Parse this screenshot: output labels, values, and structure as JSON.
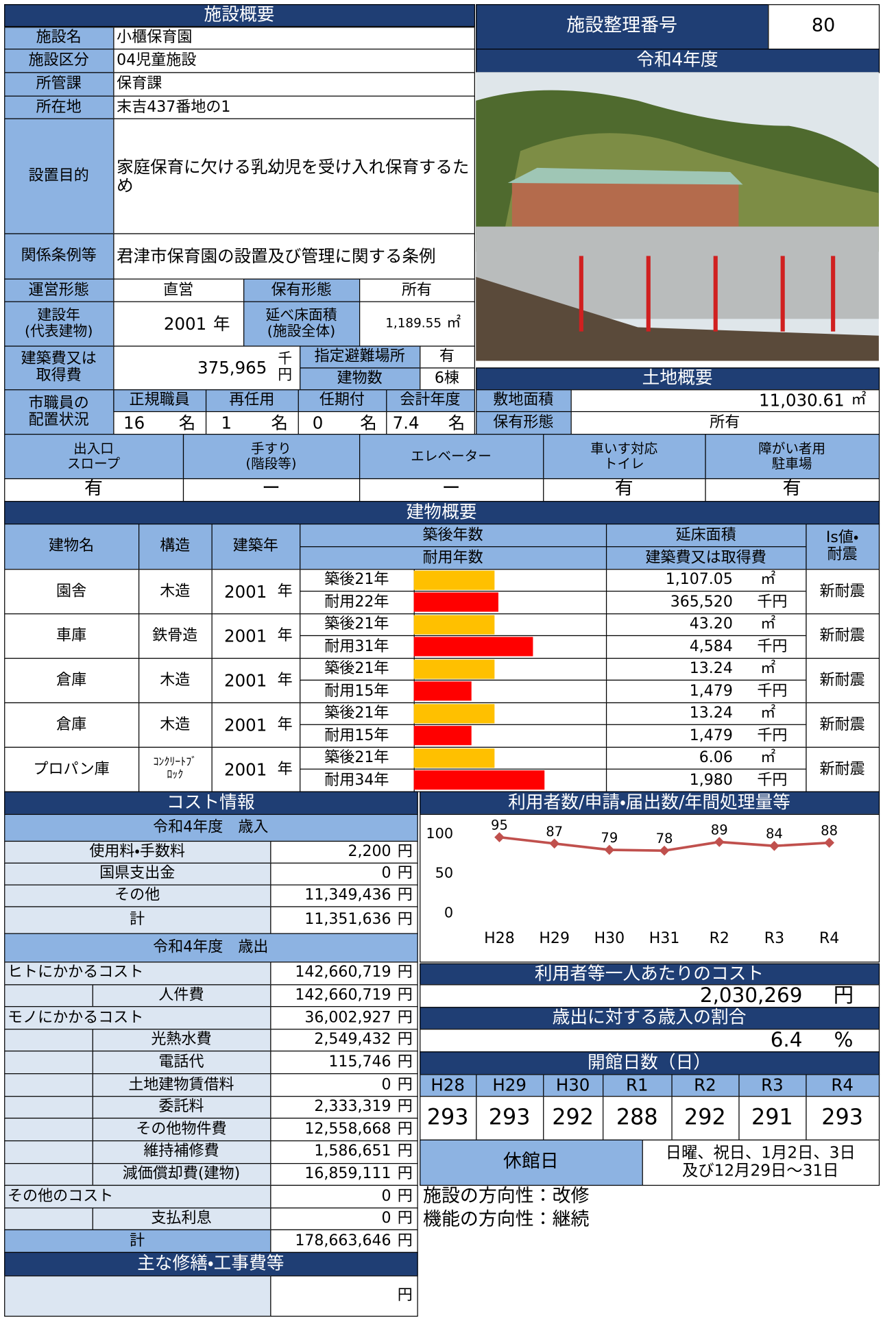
{
  "overview": {
    "title": "施設概要",
    "fields": [
      {
        "label": "施設名",
        "value": "小櫃保育園"
      },
      {
        "label": "施設区分",
        "value": "04児童施設"
      },
      {
        "label": "所管課",
        "value": "保育課"
      },
      {
        "label": "所在地",
        "value": "末吉437番地の1"
      },
      {
        "label": "設置目的",
        "value": "家庭保育に欠ける乳幼児を受け入れ保育するため"
      },
      {
        "label": "関係条例等",
        "value": "君津市保育園の設置及び管理に関する条例"
      }
    ],
    "management": {
      "label": "運営形態",
      "value": "直営"
    },
    "ownership": {
      "label": "保有形態",
      "value": "所有"
    },
    "built_year": {
      "label": "建設年\n(代表建物)",
      "value": "2001",
      "unit": "年"
    },
    "floor_area": {
      "label": "延べ床面積\n(施設全体)",
      "value": "1,189.55",
      "unit": "㎡"
    },
    "cost": {
      "label": "建築費又は\n取得費",
      "value": "375,965",
      "unit": "千\n円"
    },
    "shelter": {
      "label": "指定避難場所",
      "value": "有"
    },
    "building_count": {
      "label": "建物数",
      "value": "6棟"
    },
    "staff": {
      "label": "市職員の\n配置状況",
      "items": [
        {
          "label": "正規職員",
          "count": "16",
          "unit": "名"
        },
        {
          "label": "再任用",
          "count": "1",
          "unit": "名"
        },
        {
          "label": "任期付",
          "count": "0",
          "unit": "名"
        },
        {
          "label": "会計年度",
          "count": "7.4",
          "unit": "名"
        }
      ]
    }
  },
  "facility_number": {
    "label": "施設整理番号",
    "value": "80"
  },
  "fiscal_year": "令和4年度",
  "land": {
    "title": "土地概要",
    "area": {
      "label": "敷地面積",
      "value": "11,030.61",
      "unit": "㎡"
    },
    "ownership": {
      "label": "保有形態",
      "value": "所有"
    }
  },
  "accessibility": [
    {
      "label": "出入口\nスロープ",
      "value": "有"
    },
    {
      "label": "手すり\n(階段等)",
      "value": "ー"
    },
    {
      "label": "エレベーター",
      "value": "ー"
    },
    {
      "label": "車いす対応\nトイレ",
      "value": "有"
    },
    {
      "label": "障がい者用\n駐車場",
      "value": "有"
    }
  ],
  "buildings": {
    "title": "建物概要",
    "headers": {
      "name": "建物名",
      "structure": "構造",
      "year": "建築年",
      "age": "築後年数",
      "life": "耐用年数",
      "area": "延床面積",
      "cost": "建築費又は取得費",
      "seismic": "Is値・\n耐震"
    },
    "bar_xlim": [
      0,
      50
    ],
    "rows": [
      {
        "name": "園舎",
        "structure": "木造",
        "year": "2001",
        "year_unit": "年",
        "age": 21,
        "age_label": "築後21年",
        "life": 22,
        "life_label": "耐用22年",
        "area": "1,107.05",
        "area_unit": "㎡",
        "cost": "365,520",
        "cost_unit": "千円",
        "seismic": "新耐震"
      },
      {
        "name": "車庫",
        "structure": "鉄骨造",
        "year": "2001",
        "year_unit": "年",
        "age": 21,
        "age_label": "築後21年",
        "life": 31,
        "life_label": "耐用31年",
        "area": "43.20",
        "area_unit": "㎡",
        "cost": "4,584",
        "cost_unit": "千円",
        "seismic": "新耐震"
      },
      {
        "name": "倉庫",
        "structure": "木造",
        "year": "2001",
        "year_unit": "年",
        "age": 21,
        "age_label": "築後21年",
        "life": 15,
        "life_label": "耐用15年",
        "area": "13.24",
        "area_unit": "㎡",
        "cost": "1,479",
        "cost_unit": "千円",
        "seismic": "新耐震"
      },
      {
        "name": "倉庫",
        "structure": "木造",
        "year": "2001",
        "year_unit": "年",
        "age": 21,
        "age_label": "築後21年",
        "life": 15,
        "life_label": "耐用15年",
        "area": "13.24",
        "area_unit": "㎡",
        "cost": "1,479",
        "cost_unit": "千円",
        "seismic": "新耐震"
      },
      {
        "name": "プロパン庫",
        "structure": "ｺﾝｸﾘｰﾄﾌﾞ\nﾛｯｸ",
        "year": "2001",
        "year_unit": "年",
        "age": 21,
        "age_label": "築後21年",
        "life": 34,
        "life_label": "耐用34年",
        "area": "6.06",
        "area_unit": "㎡",
        "cost": "1,980",
        "cost_unit": "千円",
        "seismic": "新耐震"
      }
    ]
  },
  "cost_info": {
    "title": "コスト情報",
    "revenue": {
      "header": "令和4年度　歳入",
      "rows": [
        {
          "label": "使用料・手数料",
          "amount": "2,200",
          "unit": "円"
        },
        {
          "label": "国県支出金",
          "amount": "0",
          "unit": "円"
        },
        {
          "label": "その他",
          "amount": "11,349,436",
          "unit": "円"
        },
        {
          "label": "計",
          "amount": "11,351,636",
          "unit": "円"
        }
      ]
    },
    "expenditure": {
      "header": "令和4年度　歳出",
      "rows": [
        {
          "label": "ヒトにかかるコスト",
          "amount": "142,660,719",
          "unit": "円"
        },
        {
          "label": "人件費",
          "amount": "142,660,719",
          "unit": "円"
        },
        {
          "label": "モノにかかるコスト",
          "amount": "36,002,927",
          "unit": "円"
        },
        {
          "label": "光熱水費",
          "amount": "2,549,432",
          "unit": "円"
        },
        {
          "label": "電話代",
          "amount": "115,746",
          "unit": "円"
        },
        {
          "label": "土地建物賃借料",
          "amount": "0",
          "unit": "円"
        },
        {
          "label": "委託料",
          "amount": "2,333,319",
          "unit": "円"
        },
        {
          "label": "その他物件費",
          "amount": "12,558,668",
          "unit": "円"
        },
        {
          "label": "維持補修費",
          "amount": "1,586,651",
          "unit": "円"
        },
        {
          "label": "減価償却費(建物)",
          "amount": "16,859,111",
          "unit": "円"
        },
        {
          "label": "その他のコスト",
          "amount": "0",
          "unit": "円"
        },
        {
          "label": "支払利息",
          "amount": "0",
          "unit": "円"
        },
        {
          "label": "計",
          "amount": "178,663,646",
          "unit": "円"
        }
      ]
    }
  },
  "repairs": {
    "title": "主な修繕・工事費等",
    "unit": "円"
  },
  "usage": {
    "title": "利用者数/申請・届出数/年間処理量等",
    "chart_data": {
      "type": "line",
      "categories": [
        "H28",
        "H29",
        "H30",
        "H31",
        "R2",
        "R3",
        "R4"
      ],
      "values": [
        95,
        87,
        79,
        78,
        89,
        84,
        88
      ],
      "color": "#c0504d",
      "ylim": [
        0,
        100
      ],
      "yticks": [
        0,
        50,
        100
      ]
    }
  },
  "per_user_cost": {
    "title": "利用者等一人あたりのコスト",
    "value": "2,030,269",
    "unit": "円"
  },
  "revenue_ratio": {
    "title": "歳出に対する歳入の割合",
    "value": "6.4",
    "unit": "%"
  },
  "open_days": {
    "title": "開館日数（日）",
    "years": [
      "H28",
      "H29",
      "H30",
      "R1",
      "R2",
      "R3",
      "R4"
    ],
    "days": [
      "293",
      "293",
      "292",
      "288",
      "292",
      "291",
      "293"
    ]
  },
  "closed_days": {
    "label": "休館日",
    "value": "日曜、祝日、1月2日、3日\n及び12月29日～31日"
  },
  "direction": {
    "facility": "施設の方向性：改修",
    "function": "機能の方向性：継続"
  }
}
